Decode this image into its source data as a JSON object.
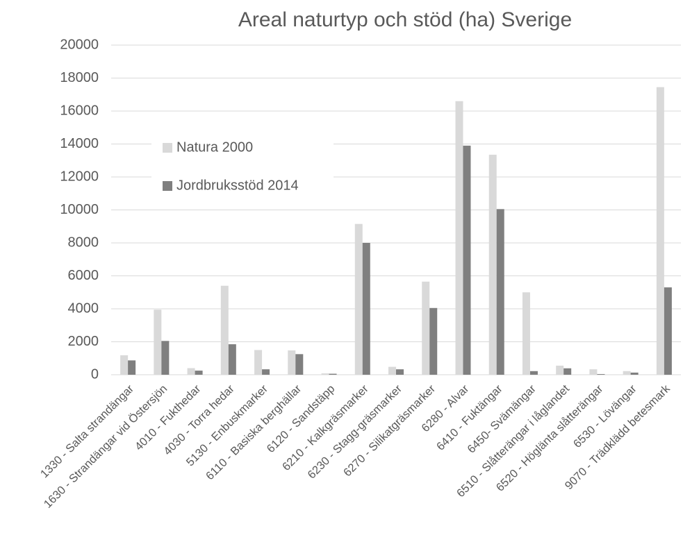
{
  "chart_data": {
    "type": "bar",
    "title": "Areal naturtyp och stöd (ha) Sverige",
    "categories": [
      "1330 - Salta strandängar",
      "1630 - Strandängar vid Östersjön",
      "4010 - Fukthedar",
      "4030 - Torra hedar",
      "5130 - Enbuskmarker",
      "6110 - Basiska berghällar",
      "6120 - Sandstäpp",
      "6210 - Kalkgräsmarker",
      "6230 - Stagg-gräsmarker",
      "6270 - Silikatgräsmarker",
      "6280 - Alvar",
      "6410 - Fuktängar",
      "6450- Svämängar",
      "6510 - Slåtterängar i låglandet",
      "6520 - Höglänta slåtterängar",
      "6530 - Lövängar",
      "9070 - Trädklädd betesmark"
    ],
    "series": [
      {
        "name": "Natura 2000",
        "color": "#d9d9d9",
        "values": [
          1180,
          3950,
          400,
          5400,
          1500,
          1480,
          80,
          9150,
          480,
          5650,
          16600,
          13350,
          5000,
          550,
          330,
          220,
          17450
        ]
      },
      {
        "name": "Jordbruksstöd 2014",
        "color": "#7f7f7f",
        "values": [
          870,
          2050,
          250,
          1850,
          330,
          1250,
          60,
          8000,
          330,
          4050,
          13900,
          10050,
          220,
          390,
          40,
          130,
          5300
        ]
      }
    ],
    "ylim": [
      0,
      20000
    ],
    "yticks": [
      0,
      2000,
      4000,
      6000,
      8000,
      10000,
      12000,
      14000,
      16000,
      18000,
      20000
    ],
    "grid": true,
    "legend": "upper left"
  }
}
